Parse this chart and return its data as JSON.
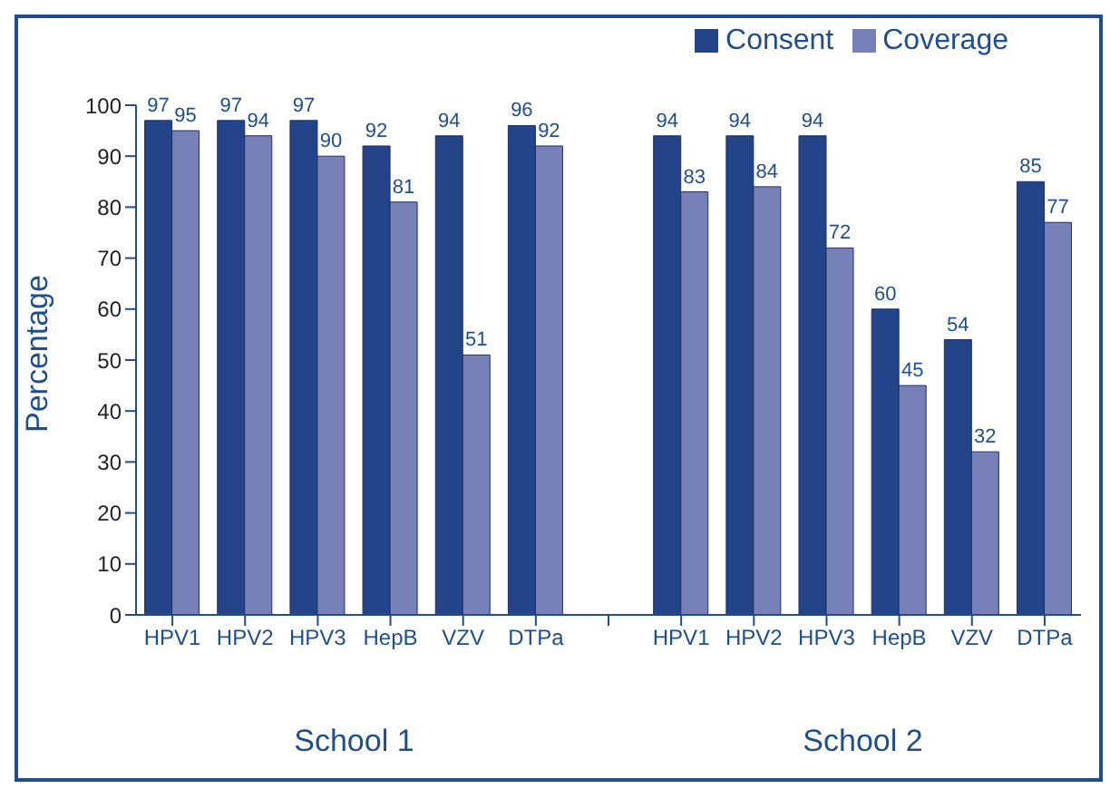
{
  "chart_data": {
    "type": "bar",
    "ylabel": "Percentage",
    "categories": [
      "HPV1",
      "HPV2",
      "HPV3",
      "HepB",
      "VZV",
      "DTPa",
      null,
      "HPV1",
      "HPV2",
      "HPV3",
      "HepB",
      "VZV",
      "DTPa"
    ],
    "series": [
      {
        "name": "Consent",
        "color": "#24448a",
        "values": [
          97,
          97,
          97,
          92,
          94,
          96,
          null,
          94,
          94,
          94,
          60,
          54,
          85
        ]
      },
      {
        "name": "Coverage",
        "color": "#7880b8",
        "values": [
          95,
          94,
          90,
          81,
          51,
          92,
          null,
          83,
          84,
          72,
          45,
          32,
          77
        ]
      }
    ],
    "ylim": [
      0,
      100
    ],
    "yticks": [
      0,
      10,
      20,
      30,
      40,
      50,
      60,
      70,
      80,
      90,
      100
    ],
    "legend": "top right",
    "data_labels": true,
    "annotations": [
      "School 1",
      "School 2"
    ]
  }
}
